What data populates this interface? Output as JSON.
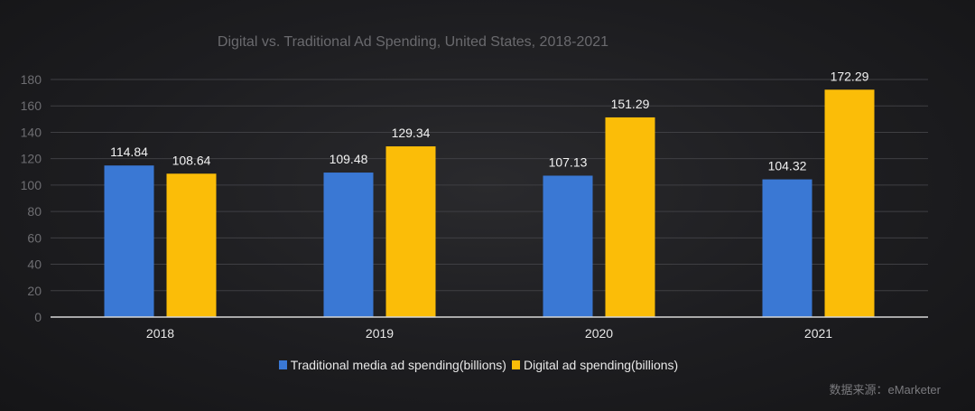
{
  "chart_data": {
    "type": "bar",
    "title": "Digital vs. Traditional Ad Spending, United States, 2018-2021",
    "categories": [
      "2018",
      "2019",
      "2020",
      "2021"
    ],
    "series": [
      {
        "name": "Traditional media ad spending(billions)",
        "color": "#3a78d4",
        "values": [
          114.84,
          109.48,
          107.13,
          104.32
        ],
        "labels": [
          "114.84",
          "109.48",
          "107.13",
          "104.32"
        ]
      },
      {
        "name": "Digital ad spending(billions)",
        "color": "#fbbd08",
        "values": [
          108.64,
          129.34,
          151.29,
          172.29
        ],
        "labels": [
          "108.64",
          "129.34",
          "151.29",
          "172.29"
        ]
      }
    ],
    "ylim": [
      0,
      180
    ],
    "yticks": [
      "0",
      "20",
      "40",
      "60",
      "80",
      "100",
      "120",
      "140",
      "160",
      "180"
    ],
    "grid": true,
    "legend": "bottom"
  },
  "source": "数据来源：eMarketer"
}
